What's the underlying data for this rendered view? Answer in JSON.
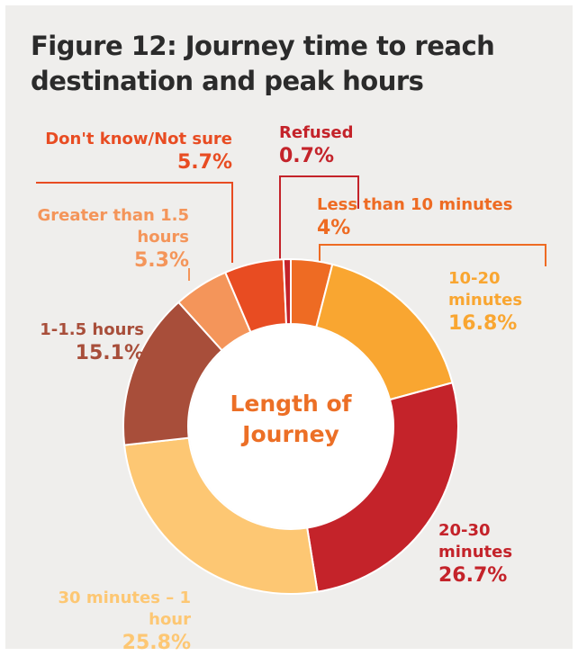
{
  "chart_data": {
    "type": "donut",
    "title": "Figure 12: Journey time to reach destination and peak hours",
    "center_label": "Length of Journey",
    "categories": [
      "Less than 10 minutes",
      "10-20 minutes",
      "20-30 minutes",
      "30 minutes – 1 hour",
      "1-1.5 hours",
      "Greater than 1.5 hours",
      "Don't know/Not sure",
      "Refused"
    ],
    "values": [
      4,
      16.8,
      26.7,
      25.8,
      15.1,
      5.3,
      5.7,
      0.7
    ],
    "value_labels": [
      "4%",
      "16.8%",
      "26.7%",
      "25.8%",
      "15.1%",
      "5.3%",
      "5.7%",
      "0.7%"
    ],
    "colors": [
      "#ee6b23",
      "#f9a631",
      "#c4232a",
      "#fdc773",
      "#a84e3a",
      "#f4955a",
      "#e84c22",
      "#c4232a"
    ]
  }
}
